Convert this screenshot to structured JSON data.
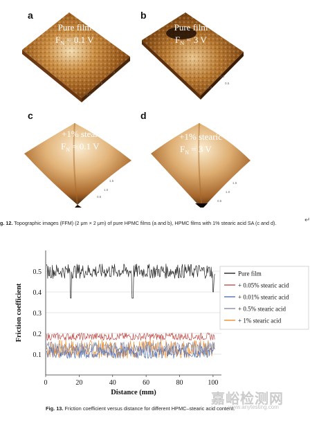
{
  "figure12": {
    "panels": [
      {
        "label": "a",
        "line1": "Pure film",
        "line2": "F",
        "sub": "N",
        "line2b": " = 0.1 V"
      },
      {
        "label": "b",
        "line1": "Pure film",
        "line2": "F",
        "sub": "N",
        "line2b": " = 3 V"
      },
      {
        "label": "c",
        "line1": "+1% stearic",
        "line2": "F",
        "sub": "N",
        "line2b": " = 0.1 V"
      },
      {
        "label": "d",
        "line1": "+1% stearic",
        "line2": "F",
        "sub": "N",
        "line2b": " = 3 V"
      }
    ],
    "caption_prefix": "g. 12.",
    "caption": "Topographic images (FFM) (2 μm × 2 μm) of pure HPMC films (a and b), HPMC films with 1% stearic acid SA (c and d).",
    "return_mark": "↵"
  },
  "figure13": {
    "caption_prefix": "Fig. 13.",
    "caption": "Friction coefficient versus distance for different HPMC–stearic acid content."
  },
  "watermark": {
    "text": "嘉峪检测网",
    "sub": "www.anytesting.com"
  },
  "colors": {
    "pure": "#222222",
    "sa005": "#c0504d",
    "sa001": "#4f6fb5",
    "sa05": "#8a8fa8",
    "sa1": "#f28c28"
  },
  "chart_data": {
    "type": "line",
    "xlabel": "Distance (mm)",
    "ylabel": "Friction coefficient",
    "xlim": [
      0,
      105
    ],
    "ylim": [
      0,
      0.6
    ],
    "xticks": [
      0,
      20,
      40,
      60,
      80,
      100
    ],
    "yticks": [
      0.1,
      0.2,
      0.3,
      0.4,
      0.5
    ],
    "grid": "horizontal",
    "legend_position": "right",
    "series": [
      {
        "name": "Pure film",
        "mean": 0.5,
        "dips": [
          [
            15,
            0.37
          ],
          [
            52,
            0.37
          ],
          [
            100,
            0.4
          ]
        ]
      },
      {
        "name": "+ 0.05% stearic acid",
        "mean": 0.185
      },
      {
        "name": "+ 0.01% stearic acid",
        "mean": 0.11
      },
      {
        "name": "+ 0.5% stearic acid",
        "mean": 0.13
      },
      {
        "name": "+ 1% stearic acid",
        "mean": 0.125
      }
    ]
  }
}
